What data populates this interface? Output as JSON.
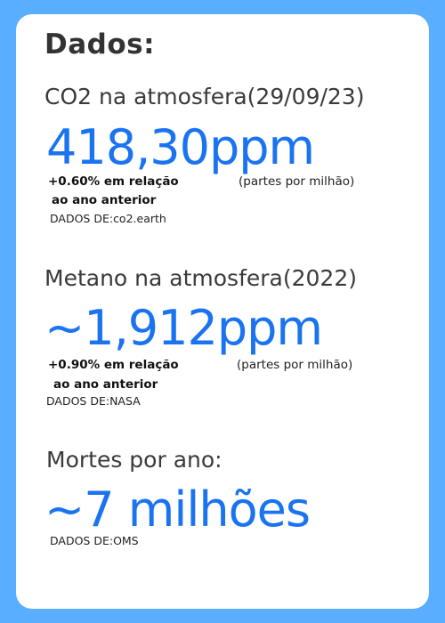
{
  "title": "Dados:",
  "co2": {
    "heading": "CO2 na atmosfera(29/09/23)",
    "value": "418,30ppm",
    "change_line1": "+0.60% em relação",
    "change_line2": "ao ano anterior",
    "unit": "(partes por milhão)",
    "source": "DADOS DE:co2.earth"
  },
  "metano": {
    "heading": "Metano na atmosfera(2022)",
    "value": "~1,912ppm",
    "change_line1": "+0.90% em relação",
    "change_line2": "ao ano anterior",
    "unit": "(partes por milhão)",
    "source": "DADOS DE:NASA"
  },
  "mortes": {
    "heading": "Mortes por ano:",
    "value": "~7 milhões",
    "source": "DADOS DE:OMS"
  },
  "colors": {
    "background": "#5aaeff",
    "card": "#ffffff",
    "accent": "#1a73f0"
  }
}
